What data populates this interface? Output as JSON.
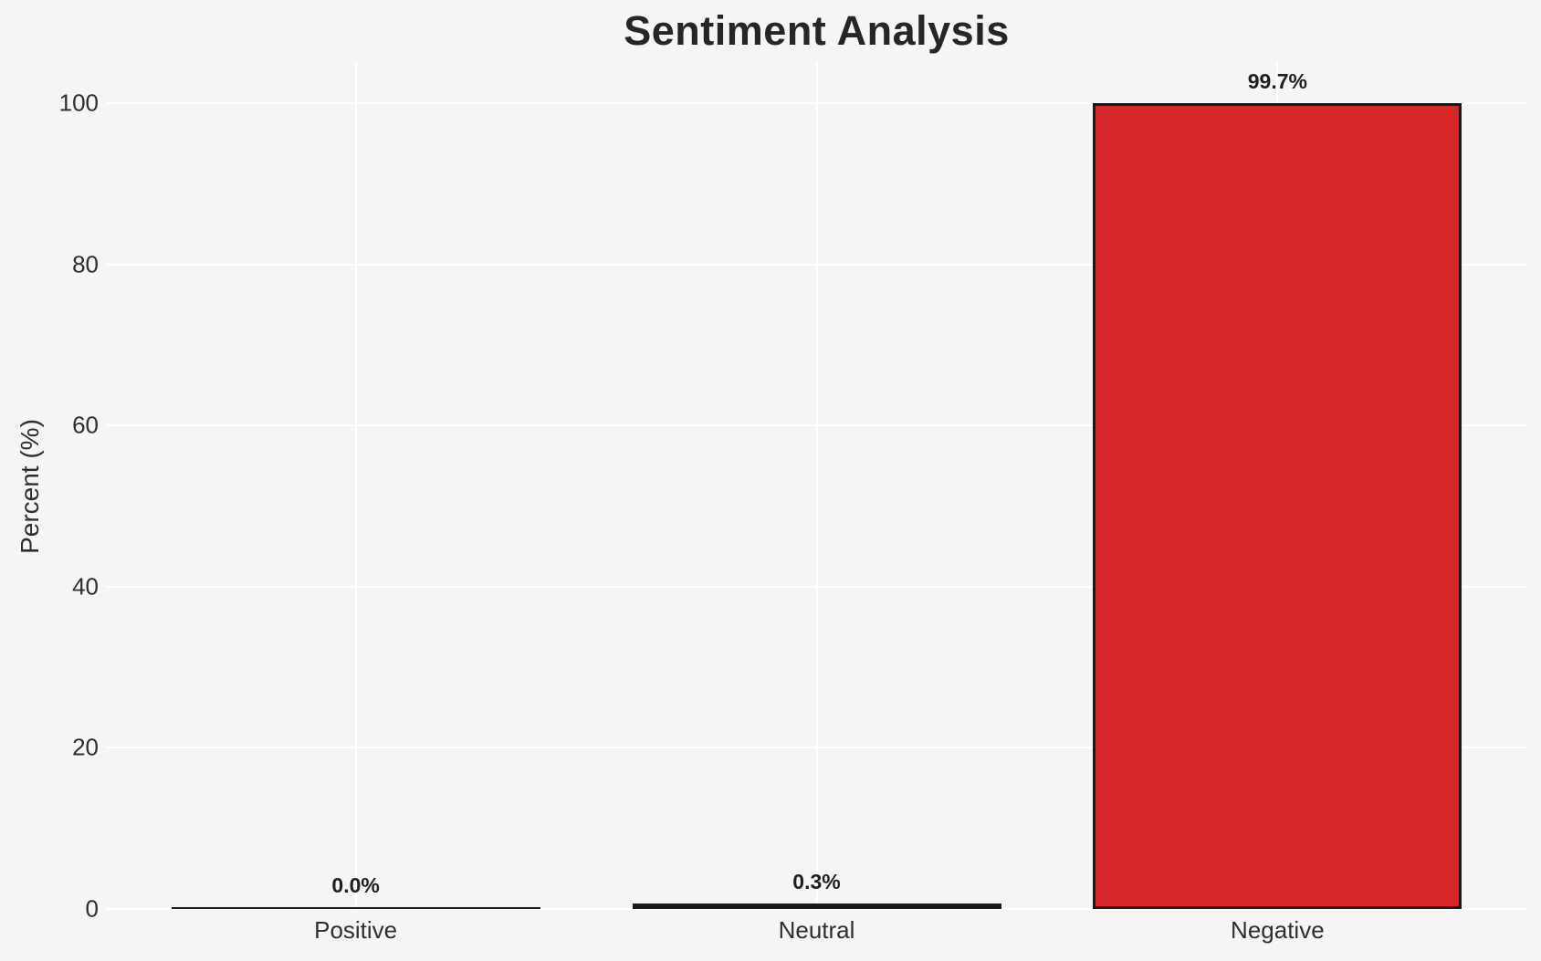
{
  "chart_data": {
    "type": "bar",
    "title": "Sentiment Analysis",
    "xlabel": "",
    "ylabel": "Percent (%)",
    "categories": [
      "Positive",
      "Neutral",
      "Negative"
    ],
    "values": [
      0.0,
      0.3,
      99.7
    ],
    "value_labels": [
      "0.0%",
      "0.3%",
      "99.7%"
    ],
    "yticks": [
      0,
      20,
      40,
      60,
      80,
      100
    ],
    "ylim": [
      0,
      105
    ],
    "grid": true,
    "legend": "none",
    "colors": {
      "bar_fill": "#d62728",
      "bar_edge": "#1a1a1a",
      "background": "#f5f5f6",
      "gridline": "#ffffff",
      "text": "#2e2e2e",
      "title_text": "#262626"
    }
  }
}
